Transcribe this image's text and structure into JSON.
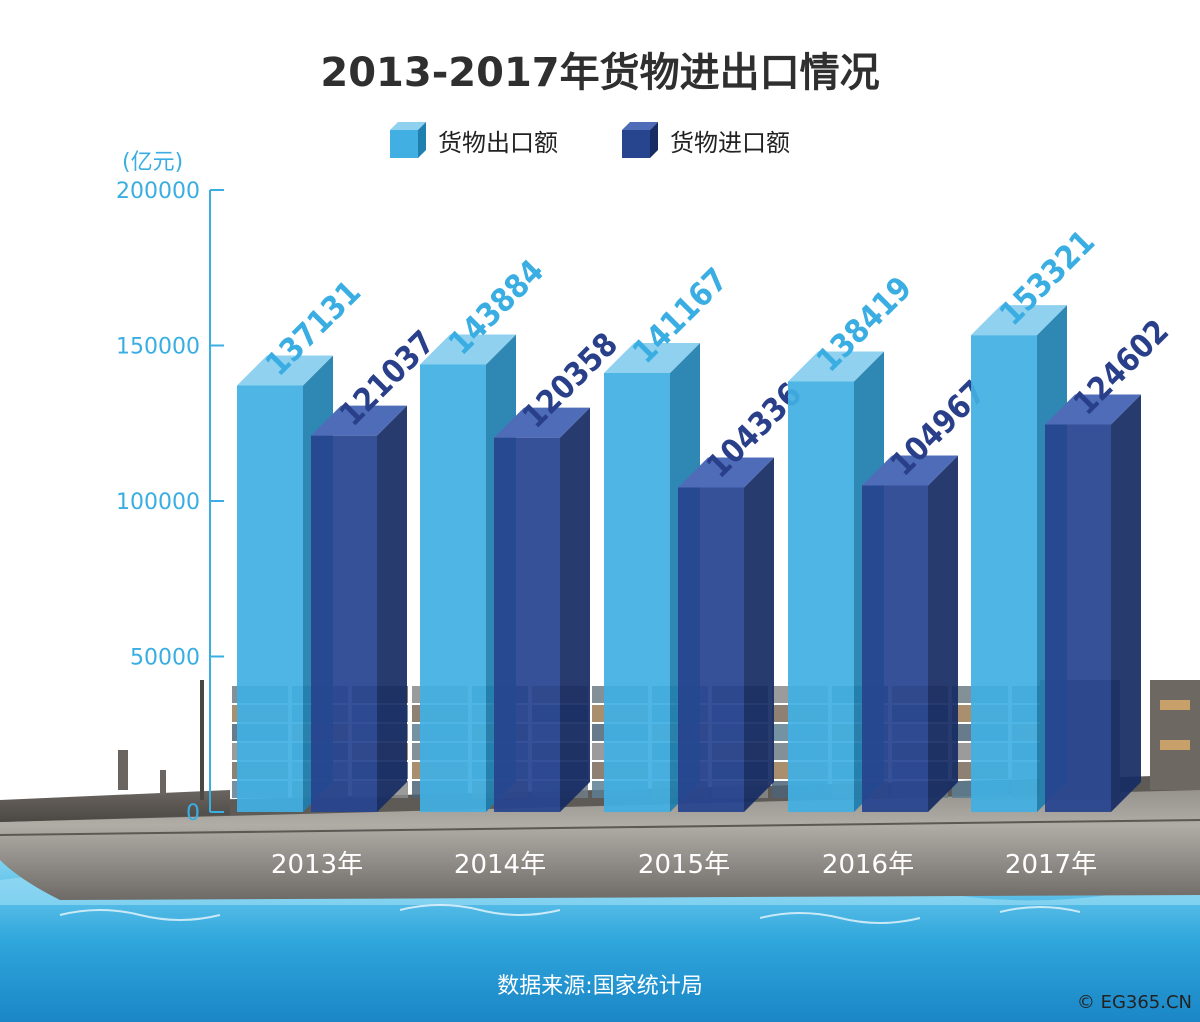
{
  "title": "2013-2017年货物进出口情况",
  "unit_label": "(亿元)",
  "legend": {
    "export_label": "货物出口额",
    "import_label": "货物进口额"
  },
  "colors": {
    "export": "#41afe2",
    "import": "#27448f",
    "axis": "#3aaee2",
    "title": "#2f2f2f"
  },
  "source": "数据来源:国家统计局",
  "credit": "© EG365.CN",
  "chart_data": {
    "type": "bar",
    "title": "2013-2017年货物进出口情况",
    "ylabel": "(亿元)",
    "categories": [
      "2013年",
      "2014年",
      "2015年",
      "2016年",
      "2017年"
    ],
    "series": [
      {
        "name": "货物出口额",
        "values": [
          137131,
          143884,
          141167,
          138419,
          153321
        ]
      },
      {
        "name": "货物进口额",
        "values": [
          121037,
          120358,
          104336,
          104967,
          124602
        ]
      }
    ],
    "ylim": [
      0,
      200000
    ],
    "yticks": [
      0,
      50000,
      100000,
      150000,
      200000
    ],
    "legend_position": "top-center",
    "grid": false,
    "style": "3d-bars"
  }
}
